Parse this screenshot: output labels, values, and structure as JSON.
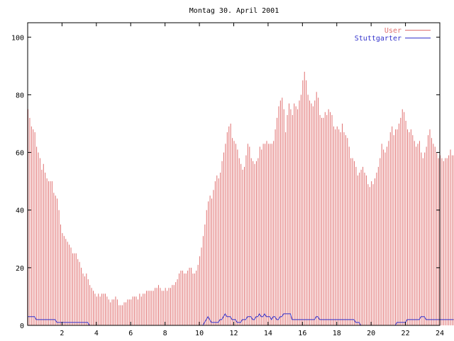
{
  "chart_data": {
    "type": "bar",
    "title": "Montag 30. April 2001",
    "xlabel": "",
    "ylabel": "",
    "xlim": [
      0,
      24
    ],
    "ylim": [
      0,
      105
    ],
    "x_ticks": [
      2,
      4,
      6,
      8,
      10,
      12,
      14,
      16,
      18,
      20,
      22,
      24
    ],
    "y_ticks": [
      0,
      20,
      40,
      60,
      80,
      100
    ],
    "grid": false,
    "legend_position": "top-right",
    "step_hours": 0.1,
    "colors": {
      "user": "#e07070",
      "stuttgarter": "#3333cc",
      "axis": "#000000"
    },
    "series": [
      {
        "name": "User",
        "style": "impulses",
        "values": [
          75,
          72,
          69,
          68,
          67,
          62,
          60,
          58,
          54,
          56,
          53,
          51,
          50,
          50,
          50,
          46,
          45,
          44,
          40,
          35,
          32,
          31,
          30,
          29,
          28,
          27,
          25,
          25,
          25,
          23,
          22,
          20,
          18,
          17,
          18,
          16,
          14,
          13,
          12,
          11,
          10,
          11,
          10,
          11,
          11,
          11,
          10,
          9,
          8,
          9,
          9,
          10,
          9,
          7,
          7,
          7,
          8,
          8,
          9,
          9,
          9,
          10,
          10,
          10,
          9,
          11,
          10,
          11,
          11,
          12,
          12,
          12,
          12,
          12,
          13,
          13,
          14,
          13,
          12,
          12,
          13,
          12,
          13,
          13,
          14,
          14,
          15,
          16,
          18,
          19,
          19,
          18,
          18,
          19,
          20,
          20,
          18,
          18,
          19,
          21,
          24,
          27,
          31,
          35,
          40,
          43,
          45,
          44,
          47,
          50,
          52,
          51,
          53,
          57,
          60,
          63,
          67,
          69,
          70,
          65,
          64,
          63,
          61,
          58,
          56,
          54,
          55,
          59,
          63,
          62,
          58,
          57,
          56,
          57,
          58,
          62,
          61,
          63,
          63,
          64,
          63,
          63,
          63,
          64,
          68,
          72,
          76,
          78,
          79,
          75,
          67,
          73,
          77,
          75,
          73,
          77,
          76,
          75,
          78,
          80,
          85,
          88,
          85,
          80,
          78,
          77,
          76,
          78,
          81,
          79,
          73,
          72,
          72,
          74,
          73,
          75,
          74,
          73,
          69,
          68,
          69,
          68,
          67,
          70,
          67,
          66,
          65,
          62,
          58,
          58,
          57,
          55,
          52,
          53,
          54,
          55,
          53,
          52,
          49,
          48,
          50,
          49,
          51,
          53,
          55,
          58,
          63,
          61,
          60,
          62,
          64,
          67,
          69,
          66,
          68,
          68,
          70,
          72,
          75,
          74,
          71,
          68,
          67,
          68,
          66,
          64,
          62,
          63,
          64,
          60,
          58,
          60,
          62,
          66,
          68,
          65,
          63,
          62,
          60,
          58,
          59,
          58,
          57,
          58,
          58,
          59,
          61,
          59,
          59
        ]
      },
      {
        "name": "Stuttgarter",
        "style": "line",
        "values": [
          3,
          3,
          3,
          3,
          3,
          2,
          2,
          2,
          2,
          2,
          2,
          2,
          2,
          2,
          2,
          2,
          2,
          1,
          1,
          1,
          1,
          1,
          1,
          1,
          1,
          1,
          1,
          1,
          1,
          1,
          1,
          1,
          1,
          1,
          1,
          1,
          0,
          0,
          0,
          0,
          0,
          0,
          0,
          0,
          0,
          0,
          0,
          0,
          0,
          0,
          0,
          0,
          0,
          0,
          0,
          0,
          0,
          0,
          0,
          0,
          0,
          0,
          0,
          0,
          0,
          0,
          0,
          0,
          0,
          0,
          0,
          0,
          0,
          0,
          0,
          0,
          0,
          0,
          0,
          0,
          0,
          0,
          0,
          0,
          0,
          0,
          0,
          0,
          0,
          0,
          0,
          0,
          0,
          0,
          0,
          0,
          0,
          0,
          0,
          0,
          0,
          0,
          0,
          1,
          2,
          3,
          2,
          1,
          1,
          1,
          1,
          1,
          2,
          2,
          3,
          4,
          3,
          3,
          3,
          2,
          2,
          2,
          1,
          1,
          1,
          2,
          2,
          2,
          3,
          3,
          3,
          2,
          2,
          3,
          3,
          4,
          3,
          3,
          4,
          3,
          3,
          3,
          2,
          3,
          3,
          2,
          2,
          3,
          3,
          4,
          4,
          4,
          4,
          4,
          2,
          2,
          2,
          2,
          2,
          2,
          2,
          2,
          2,
          2,
          2,
          2,
          2,
          2,
          3,
          3,
          2,
          2,
          2,
          2,
          2,
          2,
          2,
          2,
          2,
          2,
          2,
          2,
          2,
          2,
          2,
          2,
          2,
          2,
          2,
          2,
          2,
          1,
          1,
          1,
          0,
          0,
          0,
          0,
          0,
          0,
          0,
          0,
          0,
          0,
          0,
          0,
          0,
          0,
          0,
          0,
          0,
          0,
          0,
          0,
          0,
          1,
          1,
          1,
          1,
          1,
          1,
          2,
          2,
          2,
          2,
          2,
          2,
          2,
          2,
          3,
          3,
          3,
          2,
          2,
          2,
          2,
          2,
          2,
          2,
          2,
          2,
          2,
          2,
          2,
          2,
          2,
          2,
          2,
          2
        ]
      }
    ]
  }
}
